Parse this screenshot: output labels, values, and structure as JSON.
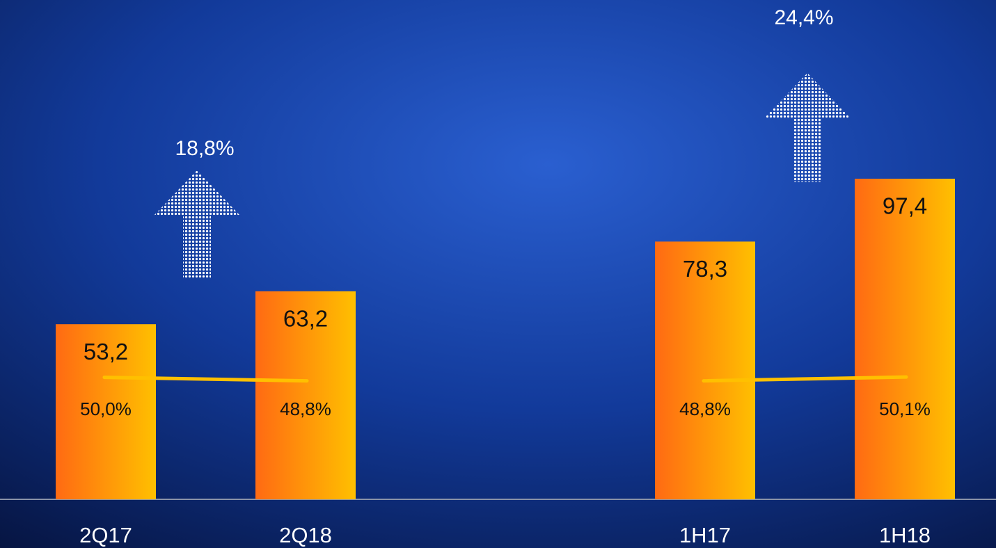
{
  "chart_data": {
    "type": "bar",
    "categories": [
      "2Q17",
      "2Q18",
      "1H17",
      "1H18"
    ],
    "values": [
      53.2,
      63.2,
      78.3,
      97.4
    ],
    "value_labels": [
      "53,2",
      "63,2",
      "78,3",
      "97,4"
    ],
    "color": "#ff6a13",
    "ylim": [
      0,
      150
    ],
    "line": {
      "values": [
        50.0,
        48.8,
        48.8,
        50.1
      ],
      "value_labels": [
        "50,0%",
        "48,8%",
        "48,8%",
        "50,1%"
      ],
      "color": "#ffc000",
      "axis": "y2"
    },
    "y2lim": [
      8,
      178
    ],
    "annotations": [
      {
        "text": "18,8%"
      },
      {
        "text": "24,4%"
      }
    ]
  }
}
